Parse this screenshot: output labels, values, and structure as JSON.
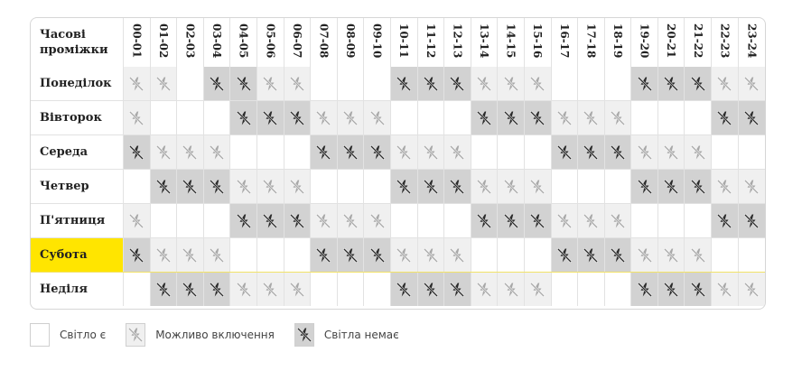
{
  "header": {
    "corner_label_line1": "Часові",
    "corner_label_line2": "проміжки"
  },
  "hours": [
    "00-01",
    "01-02",
    "02-03",
    "03-04",
    "04-05",
    "05-06",
    "06-07",
    "07-08",
    "08-09",
    "09-10",
    "10-11",
    "11-12",
    "12-13",
    "13-14",
    "14-15",
    "15-16",
    "16-17",
    "17-18",
    "18-19",
    "19-20",
    "20-21",
    "21-22",
    "22-23",
    "23-24"
  ],
  "days": [
    {
      "name": "Понеділок",
      "highlight": false,
      "status": "mmynnmmyyynnnmmmyyynnnmm"
    },
    {
      "name": "Вівторок",
      "highlight": false,
      "status": "myyynnnmmmyyynnnmmmyyynn"
    },
    {
      "name": "Середа",
      "highlight": false,
      "status": "nmmmyyynnnmmmyyynnnmmmyy"
    },
    {
      "name": "Четвер",
      "highlight": false,
      "status": "ynnnmmmyyynnnmmmyyynnnmm"
    },
    {
      "name": "П'ятниця",
      "highlight": false,
      "status": "myyynnnmmmyyynnnmmmyyynn"
    },
    {
      "name": "Субота",
      "highlight": true,
      "status": "nmmmyyynnnmmmyyynnnmmmyy"
    },
    {
      "name": "Неділя",
      "highlight": false,
      "status": "ynnnmmmyyynnnmmmyyynnnmm"
    }
  ],
  "status_codes": {
    "y": "power-on",
    "m": "possible-outage",
    "n": "no-power"
  },
  "icons": {
    "possible": "lightning-off-icon",
    "none": "lightning-off-icon"
  },
  "colors": {
    "possible_bg": "#f0f0f0",
    "none_bg": "#d2d2d2",
    "possible_icon": "#a8a8a8",
    "none_icon": "#2a2a2a",
    "highlight": "#ffe500"
  },
  "legend": [
    {
      "code": "y",
      "label": "Світло є"
    },
    {
      "code": "m",
      "label": "Можливо включення"
    },
    {
      "code": "n",
      "label": "Світла немає"
    }
  ]
}
